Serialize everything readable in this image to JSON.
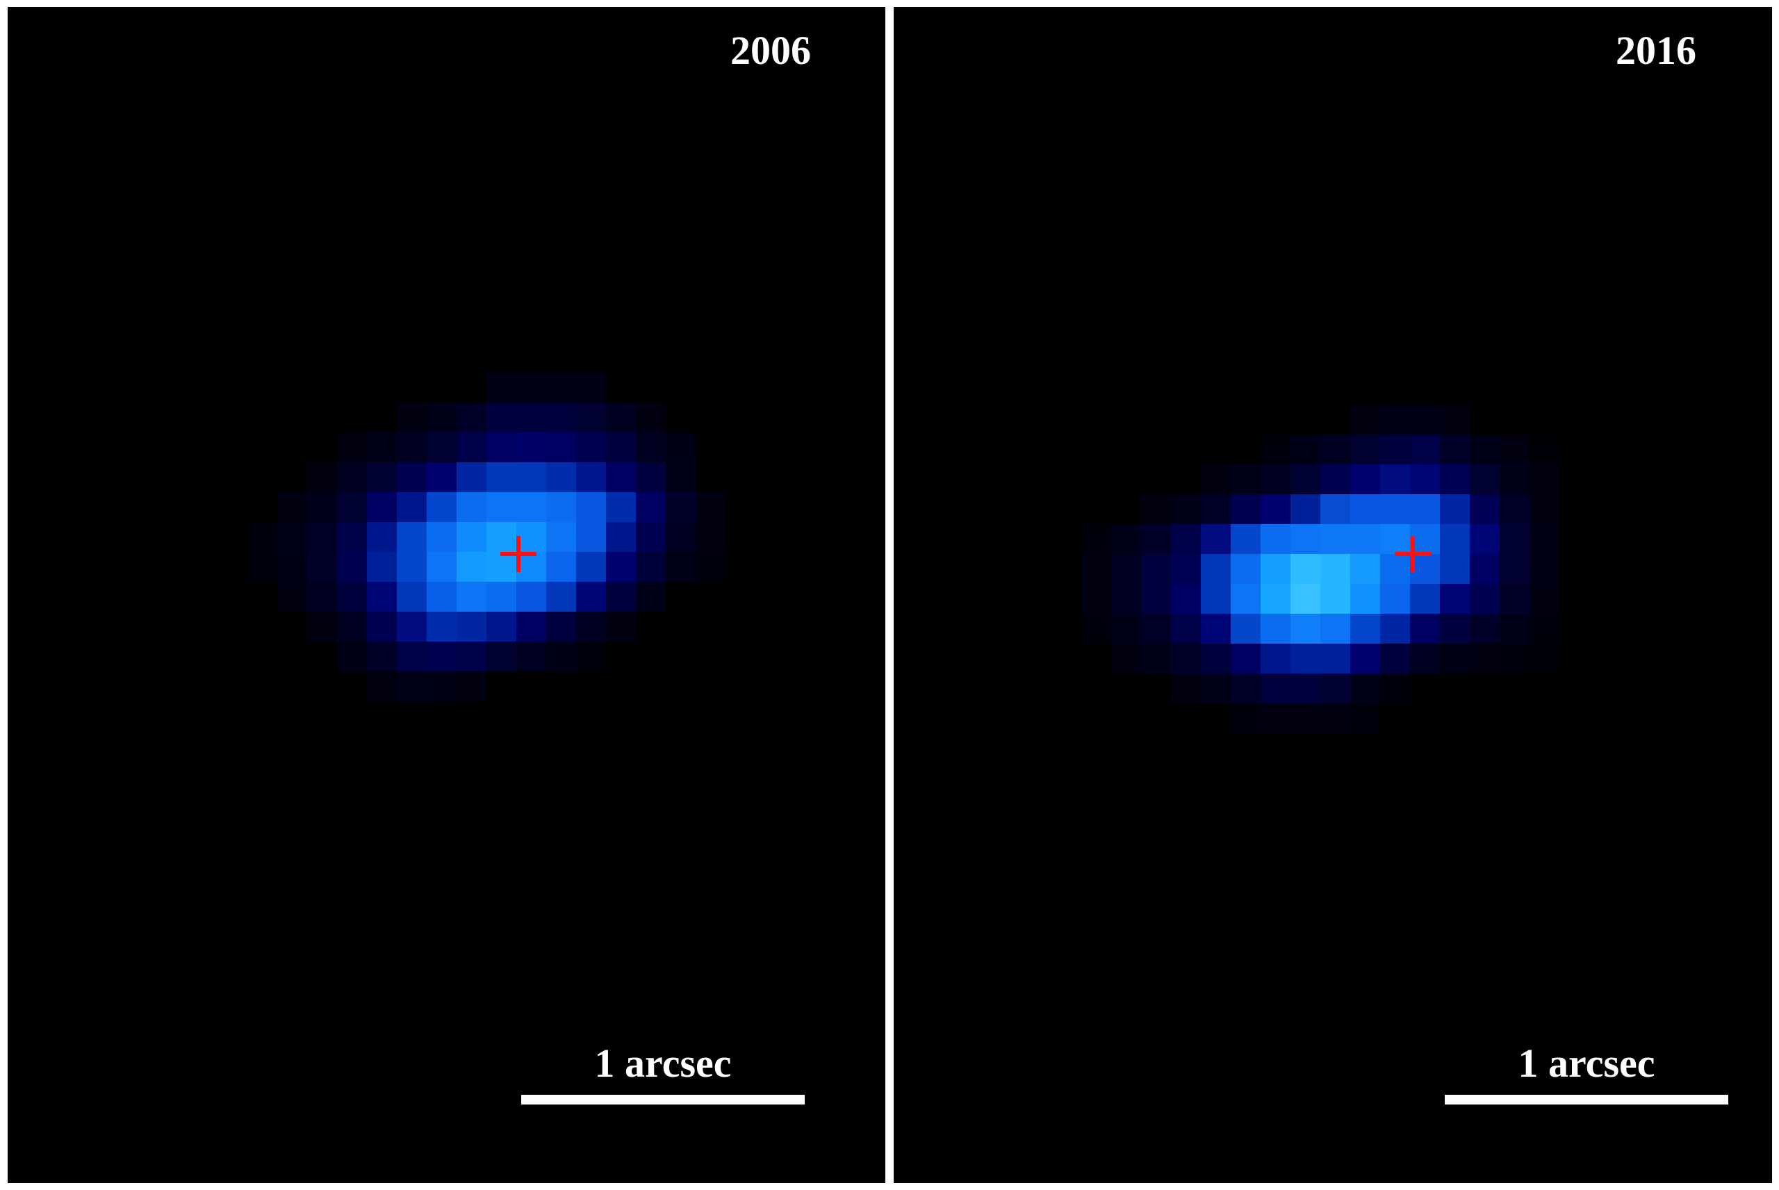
{
  "panels": [
    {
      "year": "2006",
      "scale_label": "1 arcsec",
      "intensity_rows": [
        {
          "start": 8,
          "values": [
            0.05,
            0.05,
            0.05,
            0.05
          ]
        },
        {
          "start": 5,
          "values": [
            0.04,
            0.06,
            0.1,
            0.15,
            0.15,
            0.15,
            0.12,
            0.08,
            0.04
          ]
        },
        {
          "start": 3,
          "values": [
            0.04,
            0.06,
            0.08,
            0.12,
            0.18,
            0.25,
            0.27,
            0.25,
            0.2,
            0.15,
            0.08,
            0.05
          ]
        },
        {
          "start": 2,
          "values": [
            0.04,
            0.08,
            0.12,
            0.2,
            0.28,
            0.4,
            0.45,
            0.45,
            0.42,
            0.35,
            0.25,
            0.15,
            0.06
          ]
        },
        {
          "start": 1,
          "values": [
            0.04,
            0.07,
            0.12,
            0.25,
            0.35,
            0.5,
            0.62,
            0.65,
            0.65,
            0.62,
            0.55,
            0.42,
            0.25,
            0.1,
            0.04
          ]
        },
        {
          "start": 0,
          "values": [
            0.03,
            0.06,
            0.1,
            0.18,
            0.35,
            0.5,
            0.62,
            0.72,
            0.8,
            0.75,
            0.65,
            0.55,
            0.35,
            0.2,
            0.08,
            0.04
          ]
        },
        {
          "start": 0,
          "values": [
            0.03,
            0.05,
            0.1,
            0.2,
            0.38,
            0.5,
            0.65,
            0.78,
            0.8,
            0.72,
            0.6,
            0.45,
            0.28,
            0.14,
            0.06,
            0.03
          ]
        },
        {
          "start": 1,
          "values": [
            0.04,
            0.08,
            0.15,
            0.3,
            0.45,
            0.58,
            0.65,
            0.62,
            0.55,
            0.45,
            0.3,
            0.15,
            0.06
          ]
        },
        {
          "start": 2,
          "values": [
            0.04,
            0.08,
            0.2,
            0.32,
            0.42,
            0.4,
            0.35,
            0.25,
            0.15,
            0.08,
            0.04
          ]
        },
        {
          "start": 3,
          "values": [
            0.05,
            0.1,
            0.18,
            0.2,
            0.18,
            0.12,
            0.08,
            0.05,
            0.03
          ]
        },
        {
          "start": 4,
          "values": [
            0.04,
            0.06,
            0.05,
            0.04
          ]
        }
      ]
    },
    {
      "year": "2016",
      "scale_label": "1 arcsec",
      "intensity_rows": [
        {
          "start": 9,
          "values": [
            0.04,
            0.05,
            0.05,
            0.04
          ]
        },
        {
          "start": 6,
          "values": [
            0.03,
            0.06,
            0.08,
            0.12,
            0.15,
            0.18,
            0.1,
            0.06,
            0.04,
            0.02
          ]
        },
        {
          "start": 4,
          "values": [
            0.04,
            0.06,
            0.08,
            0.12,
            0.2,
            0.28,
            0.32,
            0.3,
            0.22,
            0.12,
            0.06,
            0.04
          ]
        },
        {
          "start": 2,
          "values": [
            0.04,
            0.06,
            0.1,
            0.2,
            0.28,
            0.38,
            0.52,
            0.55,
            0.55,
            0.55,
            0.4,
            0.22,
            0.1,
            0.04
          ]
        },
        {
          "start": 0,
          "values": [
            0.03,
            0.06,
            0.1,
            0.18,
            0.32,
            0.5,
            0.62,
            0.65,
            0.66,
            0.66,
            0.68,
            0.62,
            0.45,
            0.3,
            0.12,
            0.05
          ]
        },
        {
          "start": 0,
          "values": [
            0.04,
            0.08,
            0.15,
            0.22,
            0.45,
            0.62,
            0.8,
            0.9,
            0.88,
            0.78,
            0.62,
            0.55,
            0.45,
            0.25,
            0.12,
            0.05
          ]
        },
        {
          "start": 0,
          "values": [
            0.04,
            0.08,
            0.15,
            0.25,
            0.45,
            0.65,
            0.82,
            0.92,
            0.88,
            0.75,
            0.6,
            0.45,
            0.3,
            0.2,
            0.1,
            0.04
          ]
        },
        {
          "start": 0,
          "values": [
            0.03,
            0.06,
            0.1,
            0.18,
            0.3,
            0.5,
            0.62,
            0.68,
            0.65,
            0.5,
            0.4,
            0.25,
            0.15,
            0.1,
            0.06,
            0.03
          ]
        },
        {
          "start": 1,
          "values": [
            0.04,
            0.06,
            0.1,
            0.15,
            0.25,
            0.35,
            0.38,
            0.38,
            0.28,
            0.15,
            0.08,
            0.05,
            0.04,
            0.03,
            0.02
          ]
        },
        {
          "start": 3,
          "values": [
            0.04,
            0.06,
            0.1,
            0.15,
            0.15,
            0.12,
            0.06,
            0.03
          ]
        },
        {
          "start": 5,
          "values": [
            0.03,
            0.04,
            0.04,
            0.04,
            0.03
          ]
        }
      ]
    }
  ],
  "colors": {
    "background": "#000000",
    "marker": "#ff1010",
    "text": "#ffffff",
    "colormap": [
      "#000000",
      "#00003a",
      "#000070",
      "#0030b0",
      "#0a5ee8",
      "#1088ff",
      "#18b0ff",
      "#60d4ff"
    ]
  }
}
